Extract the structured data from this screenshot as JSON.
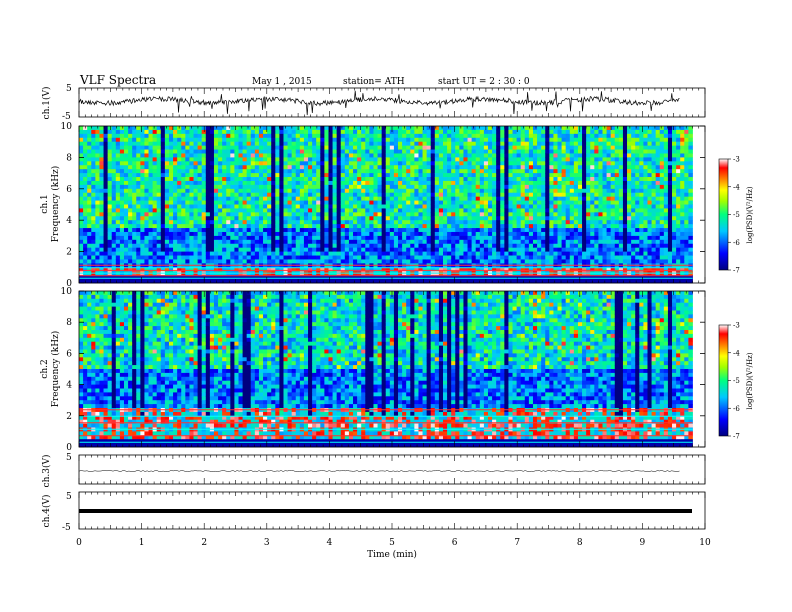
{
  "header": {
    "title": "VLF  Spectra",
    "date": "May 1  , 2015",
    "station": "station= ATH",
    "start": "start  UT  =   2  : 30 : 0"
  },
  "panels": {
    "ch1_wave_label": "ch.1(V)",
    "ch1_spec_label1": "ch.1",
    "ch1_spec_label2": "Frequency  (kHz)",
    "ch2_spec_label1": "ch.2",
    "ch2_spec_label2": "Frequency  (kHz)",
    "ch3_wave_label": "ch.3(V)",
    "ch4_wave_label": "ch.4(V)",
    "colorbar_label": "log(PSD)(V²/Hz)",
    "xlabel": "Time  (min)"
  },
  "chart_data": {
    "type": "heatmap",
    "x_axis": {
      "label": "Time  (min)",
      "range": [
        0,
        10
      ],
      "ticks": [
        "0",
        "1",
        "2",
        "3",
        "4",
        "5",
        "6",
        "7",
        "8",
        "9",
        "10"
      ]
    },
    "wave_axis_ticks": [
      "5",
      "-5"
    ],
    "spectrogram_axis": {
      "label": "Frequency  (kHz)",
      "range": [
        0,
        10
      ],
      "ticks": [
        "0",
        "2",
        "4",
        "6",
        "8",
        "10"
      ]
    },
    "colorbar": {
      "label": "log(PSD)(V²/Hz)",
      "range": [
        -7,
        -3
      ],
      "ticks": [
        "-3",
        "-4",
        "-5",
        "-6",
        "-7"
      ],
      "colors": [
        "#000080",
        "#0000ff",
        "#00c0ff",
        "#00ff80",
        "#80ff00",
        "#ffff00",
        "#ff8000",
        "#ff0000",
        "#ffffff"
      ]
    },
    "data_end_min": 9.8,
    "ch1_spectrogram": {
      "low_band_khz": [
        1.0,
        3.5
      ],
      "background_level": -5.2
    },
    "ch2_spectrogram": {
      "low_band_khz": [
        2.5,
        5.0
      ],
      "background_level": -5.3
    }
  }
}
